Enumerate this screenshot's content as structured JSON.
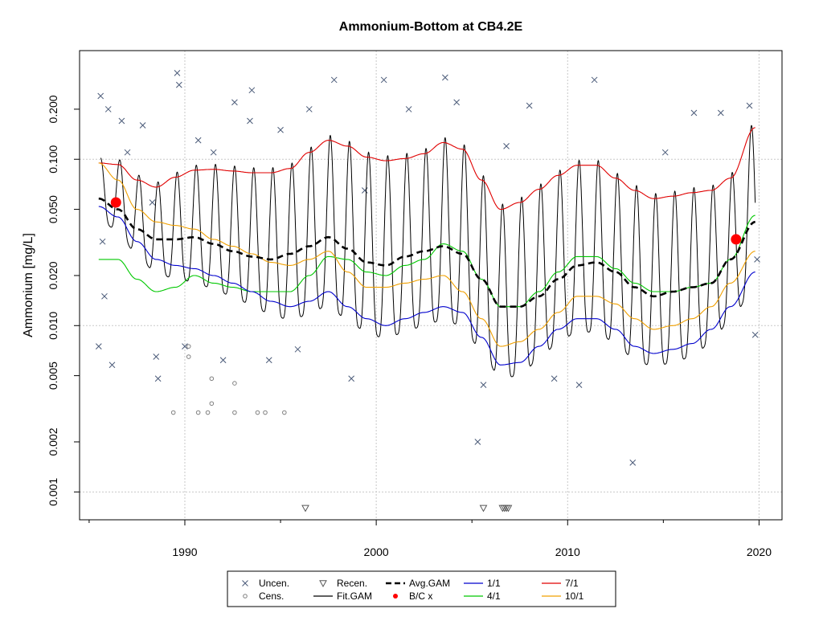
{
  "chart_data": {
    "type": "line",
    "title": "Ammonium-Bottom at CB4.2E",
    "xlabel": "",
    "ylabel": "Ammonium [mg/L]",
    "y_scale": "log",
    "xlim": [
      1984.5,
      2021.2
    ],
    "ylim": [
      0.00068,
      0.45
    ],
    "x_ticks": [
      "1990",
      "2000",
      "2010",
      "2020"
    ],
    "y_ticks": [
      "0.001",
      "0.002",
      "0.005",
      "0.010",
      "0.020",
      "0.050",
      "0.100",
      "0.200"
    ],
    "grid": true,
    "legend_position": "bottom",
    "colors": {
      "uncen": "#4a5a78",
      "cens": "#808080",
      "fit_gam": "#000000",
      "avg_gam": "#000000",
      "bc": "#ff0000",
      "jan1": "#0000cd",
      "apr1": "#00c800",
      "jul1": "#e00000",
      "oct1": "#f0a000"
    },
    "legend": [
      {
        "key": "uncen",
        "label": "Uncen.",
        "symbol": "x"
      },
      {
        "key": "recen",
        "label": "Recen.",
        "symbol": "triangle"
      },
      {
        "key": "avg_gam",
        "label": "Avg.GAM",
        "symbol": "dashed"
      },
      {
        "key": "jan1",
        "label": "1/1",
        "symbol": "line"
      },
      {
        "key": "jul1",
        "label": "7/1",
        "symbol": "line"
      },
      {
        "key": "cens",
        "label": "Cens.",
        "symbol": "circle"
      },
      {
        "key": "fit_gam",
        "label": "Fit.GAM",
        "symbol": "line"
      },
      {
        "key": "bc",
        "label": "B/C x",
        "symbol": "dot"
      },
      {
        "key": "apr1",
        "label": "4/1",
        "symbol": "line"
      },
      {
        "key": "oct1",
        "label": "10/1",
        "symbol": "line"
      }
    ],
    "series": [
      {
        "name": "7/1",
        "key": "jul1",
        "x": [
          1985.5,
          1986.5,
          1987.5,
          1988.5,
          1989.5,
          1990.5,
          1991.5,
          1992.5,
          1993.5,
          1994.5,
          1995.5,
          1996.5,
          1997.5,
          1998.5,
          1999.5,
          2000.5,
          2001.5,
          2002.5,
          2003.5,
          2004.5,
          2005.5,
          2006.5,
          2007.5,
          2008.5,
          2009.5,
          2010.5,
          2011.5,
          2012.5,
          2013.5,
          2014.5,
          2015.5,
          2016.5,
          2017.5,
          2018.5,
          2019.8
        ],
        "y": [
          0.095,
          0.093,
          0.075,
          0.068,
          0.078,
          0.086,
          0.087,
          0.085,
          0.083,
          0.083,
          0.088,
          0.11,
          0.13,
          0.12,
          0.103,
          0.098,
          0.101,
          0.108,
          0.126,
          0.115,
          0.075,
          0.05,
          0.055,
          0.066,
          0.08,
          0.092,
          0.092,
          0.077,
          0.065,
          0.058,
          0.06,
          0.063,
          0.065,
          0.077,
          0.155
        ]
      },
      {
        "name": "Avg.GAM",
        "key": "avg_gam",
        "x": [
          1985.5,
          1986.5,
          1987.5,
          1988.5,
          1989.5,
          1990.5,
          1991.5,
          1992.5,
          1993.5,
          1994.5,
          1995.5,
          1996.5,
          1997.5,
          1998.5,
          1999.5,
          2000.5,
          2001.5,
          2002.5,
          2003.5,
          2004.5,
          2005.5,
          2006.5,
          2007.5,
          2008.5,
          2009.5,
          2010.5,
          2011.5,
          2012.5,
          2013.5,
          2014.5,
          2015.5,
          2016.5,
          2017.5,
          2018.5,
          2019.8
        ],
        "y": [
          0.058,
          0.05,
          0.038,
          0.033,
          0.033,
          0.034,
          0.031,
          0.028,
          0.026,
          0.025,
          0.027,
          0.03,
          0.034,
          0.029,
          0.024,
          0.023,
          0.026,
          0.028,
          0.03,
          0.027,
          0.019,
          0.013,
          0.013,
          0.015,
          0.019,
          0.023,
          0.024,
          0.021,
          0.017,
          0.015,
          0.016,
          0.017,
          0.018,
          0.025,
          0.042
        ]
      },
      {
        "name": "4/1",
        "key": "apr1",
        "x": [
          1985.5,
          1986.5,
          1987.5,
          1988.5,
          1989.5,
          1990.5,
          1991.5,
          1992.5,
          1993.5,
          1994.5,
          1995.5,
          1996.5,
          1997.5,
          1998.5,
          1999.5,
          2000.5,
          2001.5,
          2002.5,
          2003.5,
          2004.5,
          2005.5,
          2006.5,
          2007.5,
          2008.5,
          2009.5,
          2010.5,
          2011.5,
          2012.5,
          2013.5,
          2014.5,
          2015.5,
          2016.5,
          2017.5,
          2018.5,
          2019.8
        ],
        "y": [
          0.025,
          0.025,
          0.019,
          0.016,
          0.017,
          0.02,
          0.018,
          0.017,
          0.016,
          0.016,
          0.016,
          0.02,
          0.026,
          0.025,
          0.021,
          0.02,
          0.023,
          0.025,
          0.031,
          0.028,
          0.019,
          0.013,
          0.013,
          0.016,
          0.021,
          0.026,
          0.026,
          0.022,
          0.018,
          0.016,
          0.016,
          0.017,
          0.018,
          0.025,
          0.046
        ]
      },
      {
        "name": "10/1",
        "key": "oct1",
        "x": [
          1985.5,
          1986.5,
          1987.5,
          1988.5,
          1989.5,
          1990.5,
          1991.5,
          1992.5,
          1993.5,
          1994.5,
          1995.5,
          1996.5,
          1997.5,
          1998.5,
          1999.5,
          2000.5,
          2001.5,
          2002.5,
          2003.5,
          2004.5,
          2005.5,
          2006.5,
          2007.5,
          2008.5,
          2009.5,
          2010.5,
          2011.5,
          2012.5,
          2013.5,
          2014.5,
          2015.5,
          2016.5,
          2017.5,
          2018.5,
          2019.8
        ],
        "y": [
          0.095,
          0.075,
          0.05,
          0.042,
          0.04,
          0.038,
          0.033,
          0.03,
          0.027,
          0.024,
          0.023,
          0.025,
          0.028,
          0.021,
          0.017,
          0.017,
          0.018,
          0.019,
          0.02,
          0.016,
          0.011,
          0.0075,
          0.008,
          0.0095,
          0.012,
          0.015,
          0.015,
          0.0135,
          0.011,
          0.0095,
          0.01,
          0.011,
          0.013,
          0.018,
          0.028
        ]
      },
      {
        "name": "1/1",
        "key": "jan1",
        "x": [
          1985.5,
          1986.5,
          1987.5,
          1988.5,
          1989.5,
          1990.5,
          1991.5,
          1992.5,
          1993.5,
          1994.5,
          1995.5,
          1996.5,
          1997.5,
          1998.5,
          1999.5,
          2000.5,
          2001.5,
          2002.5,
          2003.5,
          2004.5,
          2005.5,
          2006.5,
          2007.5,
          2008.5,
          2009.5,
          2010.5,
          2011.5,
          2012.5,
          2013.5,
          2014.5,
          2015.5,
          2016.5,
          2017.5,
          2018.5,
          2019.8
        ],
        "y": [
          0.052,
          0.045,
          0.032,
          0.025,
          0.023,
          0.022,
          0.02,
          0.018,
          0.016,
          0.014,
          0.013,
          0.014,
          0.016,
          0.013,
          0.011,
          0.01,
          0.011,
          0.012,
          0.013,
          0.012,
          0.0085,
          0.0058,
          0.006,
          0.0075,
          0.0095,
          0.011,
          0.011,
          0.0095,
          0.0075,
          0.0068,
          0.0072,
          0.0078,
          0.0095,
          0.013,
          0.021
        ]
      }
    ],
    "fit_gam": {
      "name": "Fit.GAM",
      "key": "fit_gam",
      "x_start": 1985.6,
      "x_end": 2019.8,
      "peak_month": 0.6,
      "trough_month": 0.1
    },
    "bc_points": [
      {
        "x": 1986.4,
        "y": 0.055
      },
      {
        "x": 2018.8,
        "y": 0.033
      }
    ],
    "uncen_points": [
      {
        "x": 1985.6,
        "y": 0.24
      },
      {
        "x": 1985.5,
        "y": 0.0075
      },
      {
        "x": 1985.7,
        "y": 0.032
      },
      {
        "x": 1985.8,
        "y": 0.015
      },
      {
        "x": 1986.0,
        "y": 0.2
      },
      {
        "x": 1986.2,
        "y": 0.0058
      },
      {
        "x": 1986.7,
        "y": 0.17
      },
      {
        "x": 1987.0,
        "y": 0.11
      },
      {
        "x": 1987.8,
        "y": 0.16
      },
      {
        "x": 1988.3,
        "y": 0.055
      },
      {
        "x": 1988.5,
        "y": 0.0065
      },
      {
        "x": 1988.6,
        "y": 0.0048
      },
      {
        "x": 1989.6,
        "y": 0.33
      },
      {
        "x": 1989.7,
        "y": 0.28
      },
      {
        "x": 1990.0,
        "y": 0.0075
      },
      {
        "x": 1990.7,
        "y": 0.13
      },
      {
        "x": 1991.5,
        "y": 0.11
      },
      {
        "x": 1992.0,
        "y": 0.0062
      },
      {
        "x": 1992.6,
        "y": 0.22
      },
      {
        "x": 1993.4,
        "y": 0.17
      },
      {
        "x": 1993.5,
        "y": 0.26
      },
      {
        "x": 1994.4,
        "y": 0.0062
      },
      {
        "x": 1995.0,
        "y": 0.15
      },
      {
        "x": 1995.9,
        "y": 0.0072
      },
      {
        "x": 1996.5,
        "y": 0.2
      },
      {
        "x": 1997.8,
        "y": 0.3
      },
      {
        "x": 1998.7,
        "y": 0.0048
      },
      {
        "x": 1999.4,
        "y": 0.065
      },
      {
        "x": 2000.4,
        "y": 0.3
      },
      {
        "x": 2001.7,
        "y": 0.2
      },
      {
        "x": 2003.6,
        "y": 0.31
      },
      {
        "x": 2004.2,
        "y": 0.22
      },
      {
        "x": 2005.3,
        "y": 0.002
      },
      {
        "x": 2005.6,
        "y": 0.0044
      },
      {
        "x": 2006.8,
        "y": 0.12
      },
      {
        "x": 2008.0,
        "y": 0.21
      },
      {
        "x": 2009.3,
        "y": 0.0048
      },
      {
        "x": 2010.6,
        "y": 0.0044
      },
      {
        "x": 2011.4,
        "y": 0.3
      },
      {
        "x": 2013.4,
        "y": 0.0015
      },
      {
        "x": 2015.1,
        "y": 0.11
      },
      {
        "x": 2016.6,
        "y": 0.19
      },
      {
        "x": 2018.0,
        "y": 0.19
      },
      {
        "x": 2019.5,
        "y": 0.21
      },
      {
        "x": 2019.8,
        "y": 0.0088
      },
      {
        "x": 2019.9,
        "y": 0.025
      }
    ],
    "cens_points": [
      {
        "x": 1989.4,
        "y": 0.003
      },
      {
        "x": 1990.2,
        "y": 0.0075
      },
      {
        "x": 1990.2,
        "y": 0.0065
      },
      {
        "x": 1990.7,
        "y": 0.003
      },
      {
        "x": 1991.2,
        "y": 0.003
      },
      {
        "x": 1991.4,
        "y": 0.0048
      },
      {
        "x": 1991.4,
        "y": 0.0034
      },
      {
        "x": 1992.6,
        "y": 0.0045
      },
      {
        "x": 1992.6,
        "y": 0.003
      },
      {
        "x": 1993.8,
        "y": 0.003
      },
      {
        "x": 1994.2,
        "y": 0.003
      },
      {
        "x": 1995.2,
        "y": 0.003
      }
    ],
    "recen_points": [
      {
        "x": 1996.3,
        "y": 0.0008
      },
      {
        "x": 2005.6,
        "y": 0.0008
      },
      {
        "x": 2006.6,
        "y": 0.0008
      },
      {
        "x": 2006.7,
        "y": 0.0008
      },
      {
        "x": 2006.8,
        "y": 0.0008
      },
      {
        "x": 2006.9,
        "y": 0.0008
      }
    ]
  }
}
